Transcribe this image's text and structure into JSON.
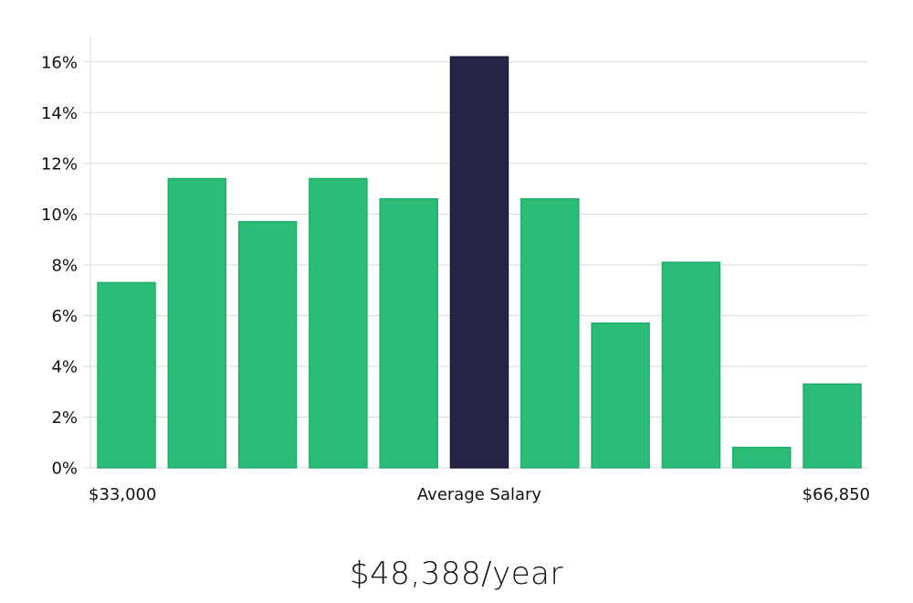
{
  "chart_data": {
    "type": "bar",
    "title": "",
    "xlabel": "Average Salary",
    "ylabel": "",
    "x_range_labels": {
      "min": "$33,000",
      "max": "$66,850"
    },
    "values": [
      7.3,
      11.4,
      9.7,
      11.4,
      10.6,
      16.2,
      10.6,
      5.7,
      8.1,
      0.8,
      3.3
    ],
    "highlight_index": 5,
    "ylim": [
      0,
      17
    ],
    "yticks": [
      0,
      2,
      4,
      6,
      8,
      10,
      12,
      14,
      16
    ],
    "ytick_suffix": "%",
    "colors": {
      "bar": "#2bbd77",
      "bar_edge": "#1fae6a",
      "highlight": "#272446",
      "highlight_edge": "#1a1740",
      "grid": "#d9d9d9"
    }
  },
  "summary": {
    "salary": "$48,388/year"
  }
}
